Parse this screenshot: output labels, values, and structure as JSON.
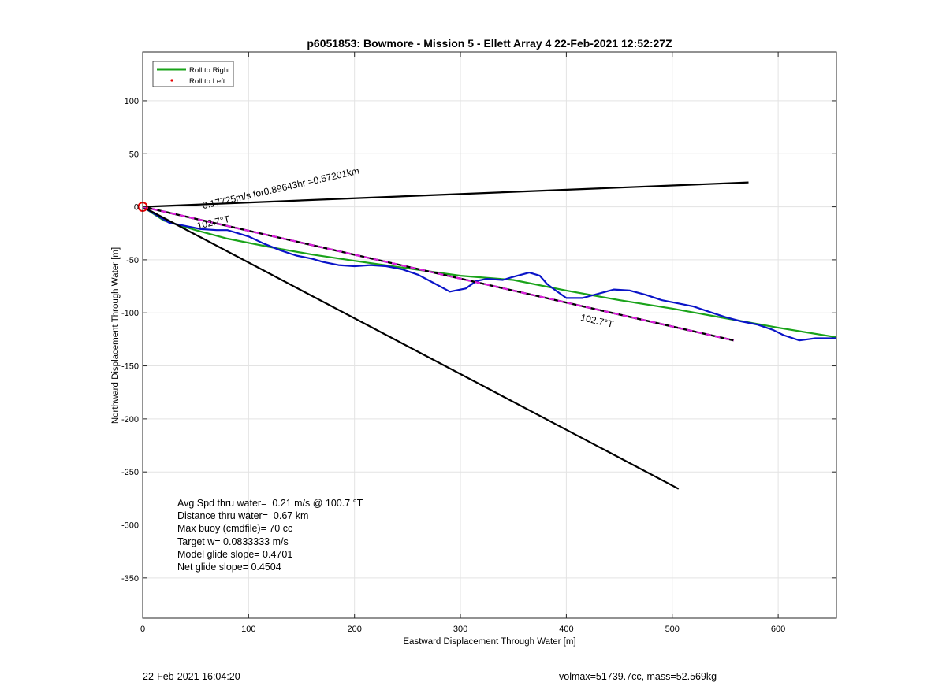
{
  "chart_data": {
    "type": "line",
    "title": "p6051853: Bowmore - Mission 5 - Ellett Array 4 22-Feb-2021 12:52:27Z",
    "xlabel": "Eastward Displacement Through Water [m]",
    "ylabel": "Northward Displacement Through Water [m]",
    "xlim": [
      0,
      655
    ],
    "ylim": [
      -388,
      146
    ],
    "xticks": [
      0,
      100,
      200,
      300,
      400,
      500,
      600
    ],
    "yticks": [
      100,
      50,
      0,
      -50,
      -100,
      -150,
      -200,
      -250,
      -300,
      -350
    ],
    "grid": true,
    "legend": {
      "placement": "top-left",
      "entries": [
        "Roll to Right",
        "Roll to Left"
      ]
    },
    "colors": {
      "roll_right": "#1aa31a",
      "roll_left": "#e60000",
      "track": "#0a14c8",
      "heading": "#000000",
      "current": "#e020e0",
      "start_marker": "#e60000"
    },
    "series": [
      {
        "name": "Roll to Right",
        "x": [
          0,
          20,
          50,
          80,
          120,
          160,
          200,
          250,
          300,
          350,
          400,
          450,
          500,
          550,
          600,
          655
        ],
        "y": [
          0,
          -13,
          -22,
          -30,
          -38,
          -45,
          -51,
          -58,
          -65,
          -69,
          -79,
          -88,
          -96,
          -105,
          -114,
          -123
        ]
      },
      {
        "name": "track",
        "x": [
          0,
          10,
          25,
          40,
          55,
          70,
          80,
          90,
          100,
          115,
          130,
          145,
          160,
          170,
          185,
          200,
          215,
          230,
          245,
          260,
          275,
          290,
          305,
          315,
          325,
          340,
          350,
          365,
          375,
          382,
          390,
          400,
          415,
          430,
          445,
          460,
          475,
          490,
          505,
          520,
          535,
          550,
          565,
          580,
          595,
          605,
          620,
          635,
          655
        ],
        "y": [
          0,
          -6,
          -15,
          -18,
          -21,
          -22,
          -22,
          -25,
          -28,
          -35,
          -41,
          -46,
          -49,
          -52,
          -55,
          -56,
          -55,
          -56,
          -59,
          -64,
          -72,
          -80,
          -77,
          -70,
          -68,
          -69,
          -66,
          -62,
          -65,
          -73,
          -79,
          -86,
          -86,
          -82,
          -78,
          -79,
          -83,
          -88,
          -91,
          -94,
          -99,
          -104,
          -108,
          -111,
          -116,
          -121,
          -126,
          -124,
          -124
        ]
      },
      {
        "name": "heading",
        "x": [
          0,
          572
        ],
        "y": [
          0,
          23
        ]
      },
      {
        "name": "heading",
        "x": [
          0,
          506
        ],
        "y": [
          0,
          -266
        ]
      },
      {
        "name": "current",
        "x": [
          0,
          558
        ],
        "y": [
          0,
          -126
        ]
      }
    ],
    "annotations": [
      {
        "text": "0.17725m/s for0.89643hr =0.57201km",
        "x": 57,
        "y": -2,
        "rotate": -12.7
      },
      {
        "text": "102.7°T",
        "x": 52,
        "y": -21,
        "rotate": -12.7
      },
      {
        "text": "102.7°T",
        "x": 413,
        "y": -107,
        "rotate": 12.7
      }
    ],
    "stats": [
      "Avg Spd thru water=  0.21 m/s @ 100.7 °T",
      "Distance thru water=  0.67 km",
      "Max buoy (cmdfile)= 70 cc",
      "Target w= 0.0833333 m/s",
      "Model glide slope= 0.4701",
      "Net glide slope= 0.4504"
    ]
  },
  "footer": {
    "left": "22-Feb-2021 16:04:20",
    "right": "volmax=51739.7cc, mass=52.569kg"
  }
}
